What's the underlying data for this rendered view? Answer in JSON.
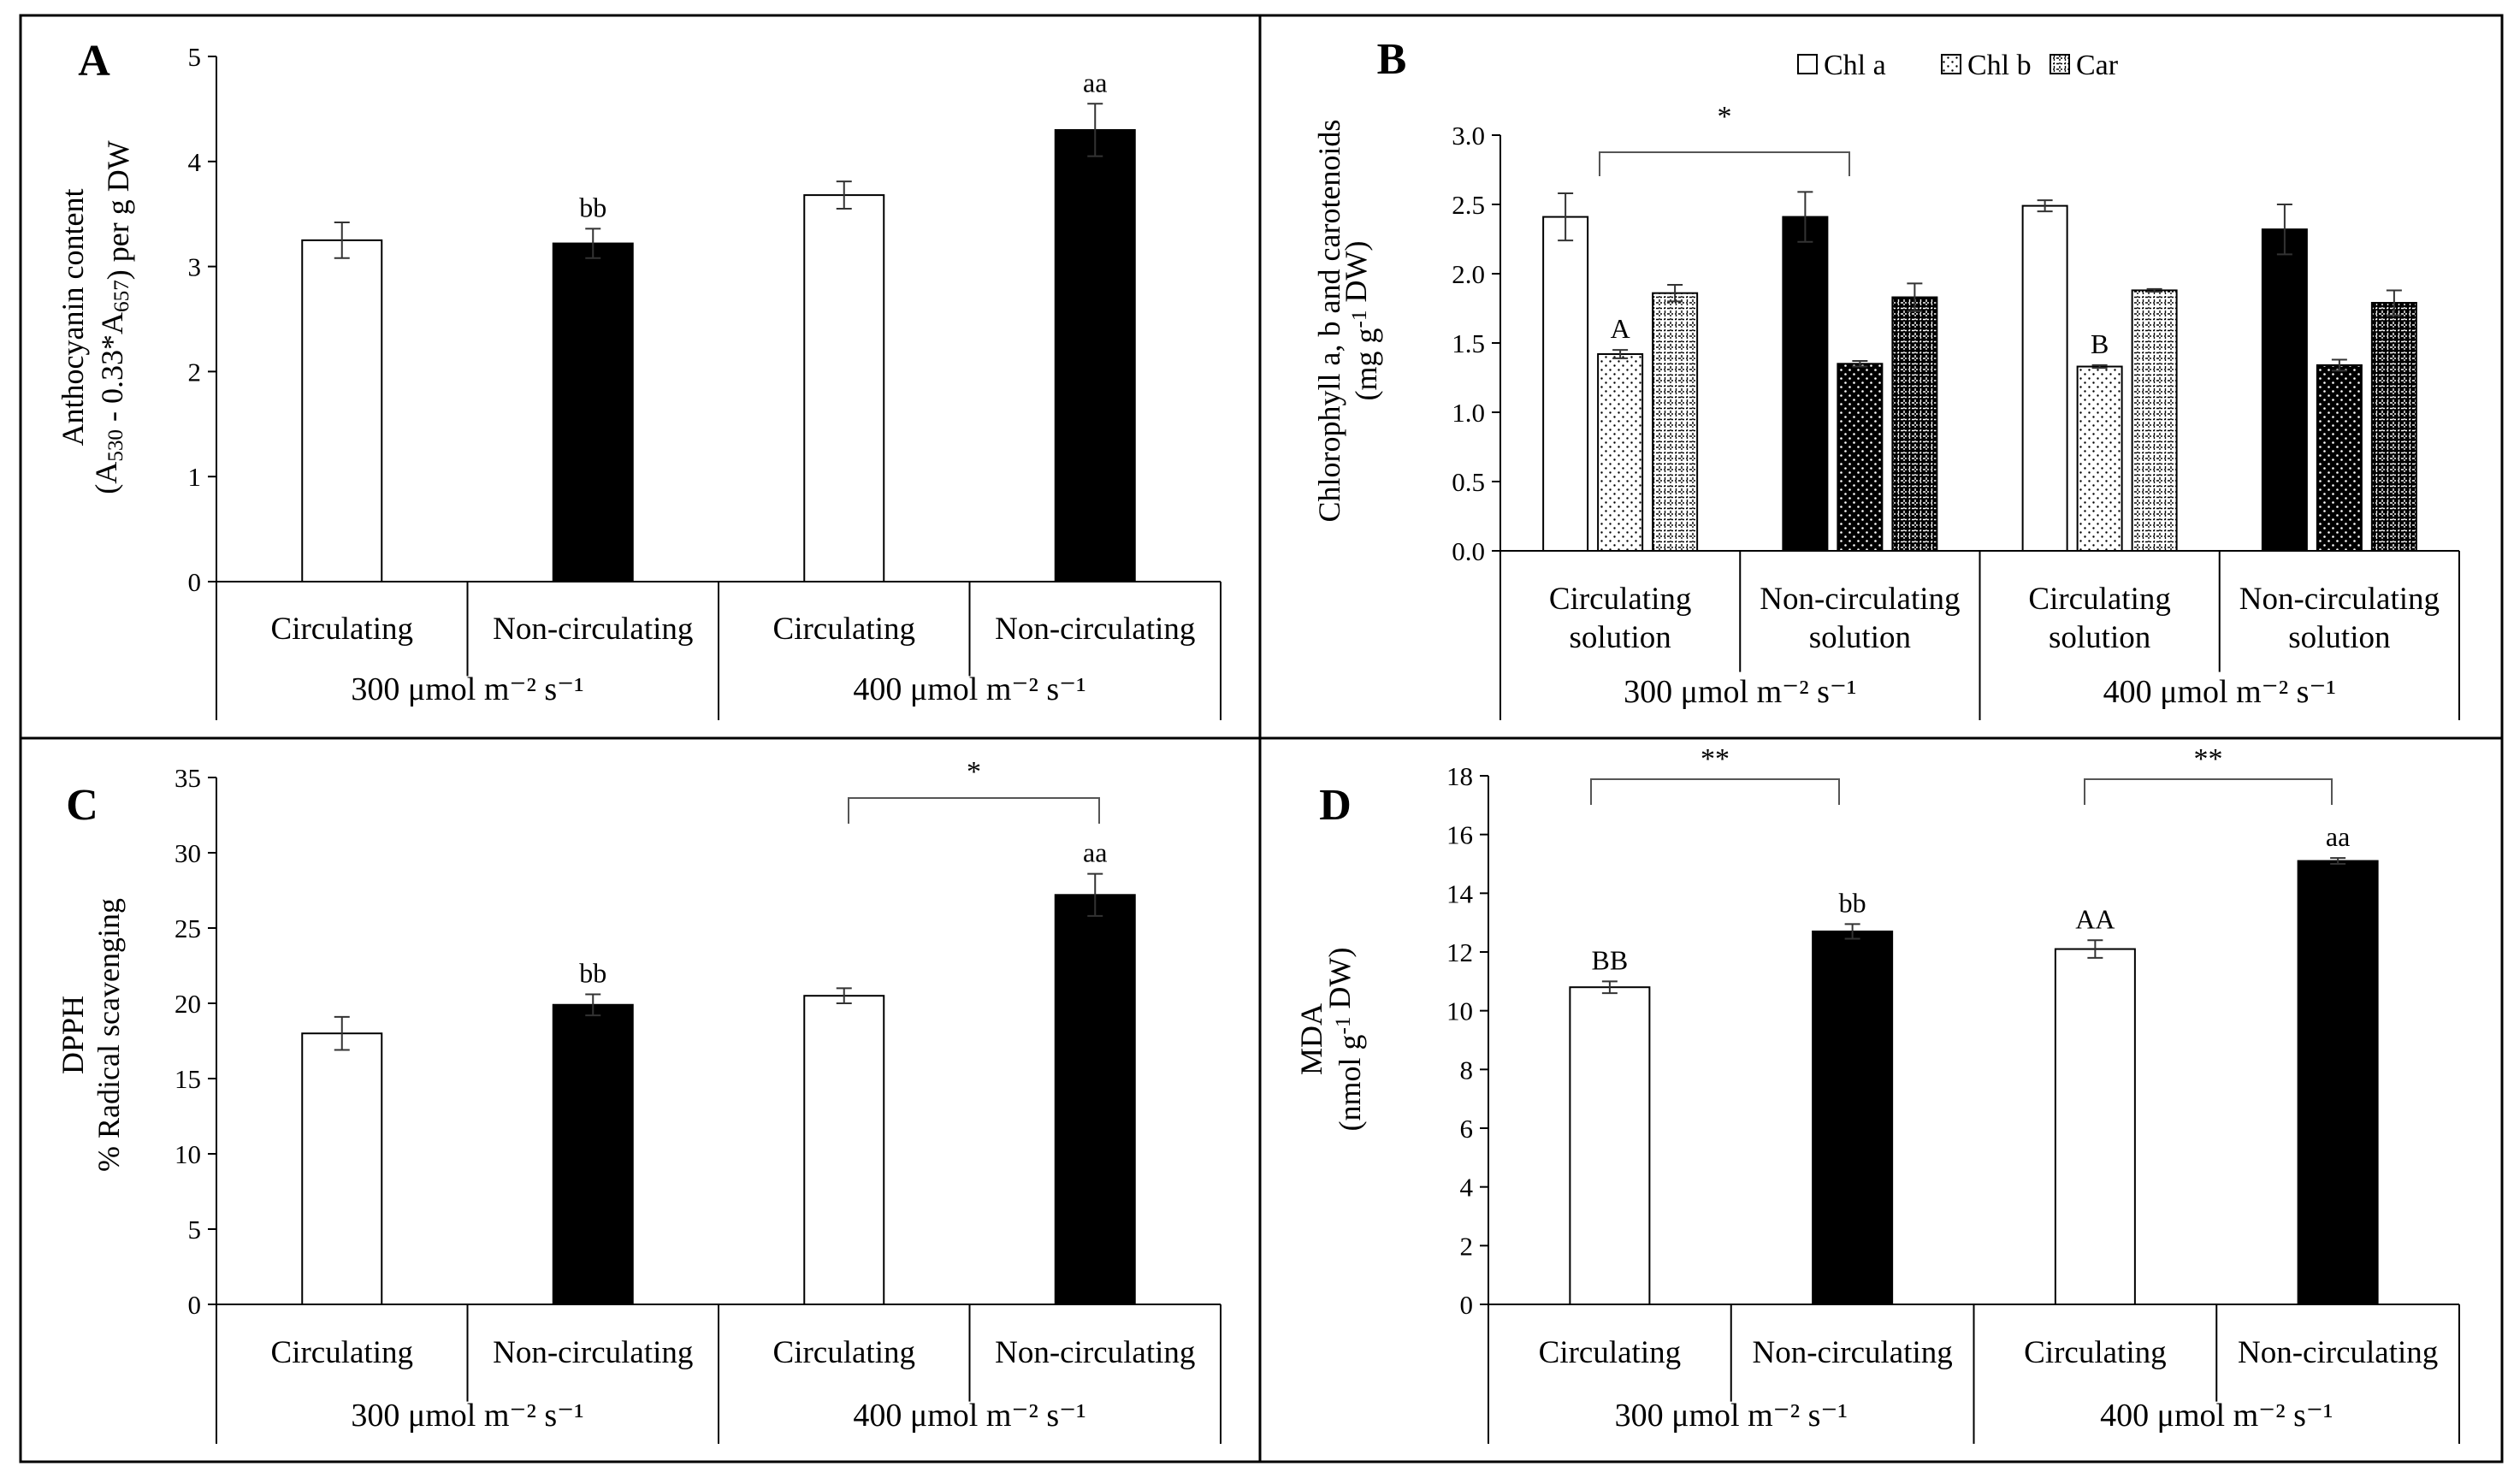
{
  "figure": {
    "colors": {
      "fill_circ": "#ffffff",
      "fill_noncirc": "#000000",
      "stroke": "#000000"
    }
  },
  "chart_data": [
    {
      "id": "A",
      "type": "bar",
      "panel_letter": "A",
      "ylabel_line1": "Anthocyanin content",
      "ylabel_line2": "(A530 - 0.33*A657) per g DW",
      "ylim": [
        0,
        5
      ],
      "yticks": [
        "0",
        "1",
        "2",
        "3",
        "4",
        "5"
      ],
      "categories": [
        "Circulating",
        "Non-circulating",
        "Circulating",
        "Non-circulating"
      ],
      "groups": [
        "300 μmol m⁻² s⁻¹",
        "400 μmol m⁻² s⁻¹"
      ],
      "series": [
        {
          "name": "Anthocyanin",
          "values": [
            3.25,
            3.22,
            3.68,
            4.3
          ],
          "errors": [
            0.17,
            0.14,
            0.13,
            0.25
          ],
          "fills": [
            "white",
            "black",
            "white",
            "black"
          ]
        }
      ],
      "sig_labels": [
        "",
        "bb",
        "",
        "aa"
      ],
      "brackets": []
    },
    {
      "id": "B",
      "type": "bar",
      "panel_letter": "B",
      "ylabel_line1": "Chlorophyll a, b and carotenoids",
      "ylabel_line2": "(mg g-1 DW)",
      "ylim": [
        0,
        3
      ],
      "yticks": [
        "0.0",
        "0.5",
        "1.0",
        "1.5",
        "2.0",
        "2.5",
        "3.0"
      ],
      "categories": [
        "Circulating solution",
        "Non-circulating solution",
        "Circulating solution",
        "Non-circulating solution"
      ],
      "groups": [
        "300 μmol m⁻² s⁻¹",
        "400 μmol m⁻² s⁻¹"
      ],
      "legend": [
        "Chl a",
        "Chl b",
        "Car"
      ],
      "series": [
        {
          "name": "Chl a",
          "values": [
            2.41,
            2.41,
            2.49,
            2.32
          ],
          "errors": [
            0.17,
            0.18,
            0.04,
            0.18
          ]
        },
        {
          "name": "Chl b",
          "values": [
            1.42,
            1.35,
            1.33,
            1.34
          ],
          "errors": [
            0.03,
            0.02,
            0.01,
            0.04
          ]
        },
        {
          "name": "Car",
          "values": [
            1.86,
            1.83,
            1.88,
            1.79
          ],
          "errors": [
            0.06,
            0.1,
            0.01,
            0.09
          ]
        }
      ],
      "sig_labels": [
        "A",
        "",
        "B",
        ""
      ],
      "brackets": [
        {
          "label": "*"
        }
      ]
    },
    {
      "id": "C",
      "type": "bar",
      "panel_letter": "C",
      "ylabel_line1": "DPPH",
      "ylabel_line2": "% Radical scavenging",
      "ylim": [
        0,
        35
      ],
      "yticks": [
        "0",
        "5",
        "10",
        "15",
        "20",
        "25",
        "30",
        "35"
      ],
      "categories": [
        "Circulating",
        "Non-circulating",
        "Circulating",
        "Non-circulating"
      ],
      "groups": [
        "300 μmol m⁻² s⁻¹",
        "400 μmol m⁻² s⁻¹"
      ],
      "series": [
        {
          "name": "DPPH",
          "values": [
            18.0,
            19.9,
            20.5,
            27.2
          ],
          "errors": [
            1.1,
            0.7,
            0.5,
            1.4
          ],
          "fills": [
            "white",
            "black",
            "white",
            "black"
          ]
        }
      ],
      "sig_labels": [
        "",
        "bb",
        "",
        "aa"
      ],
      "brackets": [
        {
          "label": "*"
        }
      ]
    },
    {
      "id": "D",
      "type": "bar",
      "panel_letter": "D",
      "ylabel_line1": "MDA",
      "ylabel_line2": "(nmol g-1 DW)",
      "ylim": [
        0,
        18
      ],
      "yticks": [
        "0",
        "2",
        "4",
        "6",
        "8",
        "10",
        "12",
        "14",
        "16",
        "18"
      ],
      "categories": [
        "Circulating",
        "Non-circulating",
        "Circulating",
        "Non-circulating"
      ],
      "groups": [
        "300 μmol m⁻² s⁻¹",
        "400 μmol m⁻² s⁻¹"
      ],
      "series": [
        {
          "name": "MDA",
          "values": [
            10.8,
            12.7,
            12.1,
            15.1
          ],
          "errors": [
            0.2,
            0.25,
            0.3,
            0.1
          ],
          "fills": [
            "white",
            "black",
            "white",
            "black"
          ]
        }
      ],
      "sig_labels": [
        "BB",
        "bb",
        "AA",
        "aa"
      ],
      "brackets": [
        {
          "label": "**"
        },
        {
          "label": "**"
        }
      ]
    }
  ]
}
